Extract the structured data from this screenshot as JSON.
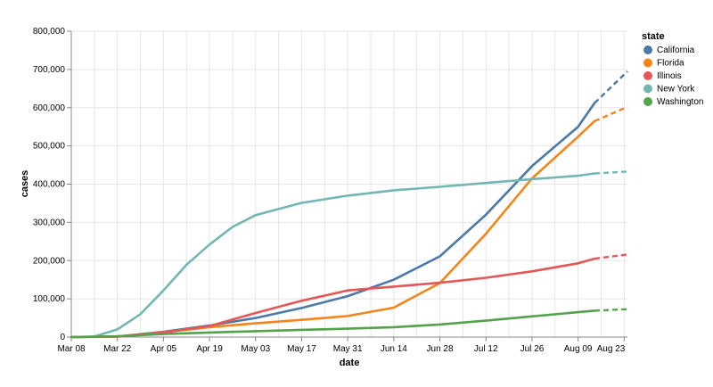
{
  "chart_data": {
    "type": "line",
    "xlabel": "date",
    "ylabel": "cases",
    "x_ticks": [
      "Mar 08",
      "Mar 22",
      "Apr 05",
      "Apr 19",
      "May 03",
      "May 17",
      "May 31",
      "Jun 14",
      "Jun 28",
      "Jul 12",
      "Jul 26",
      "Aug 09",
      "Aug 23"
    ],
    "y_ticks": [
      "0",
      "100,000",
      "200,000",
      "300,000",
      "400,000",
      "500,000",
      "600,000",
      "700,000",
      "800,000"
    ],
    "xlim": [
      "2020-03-08",
      "2020-08-24"
    ],
    "ylim": [
      0,
      800000
    ],
    "grid": true,
    "legend": {
      "title": "state",
      "position": "right"
    },
    "forecast_after": "2020-08-14",
    "series": [
      {
        "name": "California",
        "color": "#4c78a8",
        "points": [
          [
            "2020-03-08",
            100
          ],
          [
            "2020-03-22",
            1500
          ],
          [
            "2020-04-05",
            14000
          ],
          [
            "2020-04-19",
            30000
          ],
          [
            "2020-05-03",
            50000
          ],
          [
            "2020-05-17",
            76000
          ],
          [
            "2020-05-31",
            107000
          ],
          [
            "2020-06-14",
            150000
          ],
          [
            "2020-06-28",
            211000
          ],
          [
            "2020-07-12",
            320000
          ],
          [
            "2020-07-26",
            447000
          ],
          [
            "2020-08-09",
            550000
          ],
          [
            "2020-08-14",
            612000
          ],
          [
            "2020-08-24",
            695000
          ]
        ]
      },
      {
        "name": "Florida",
        "color": "#f58518",
        "points": [
          [
            "2020-03-08",
            20
          ],
          [
            "2020-03-22",
            1200
          ],
          [
            "2020-04-05",
            12500
          ],
          [
            "2020-04-19",
            26000
          ],
          [
            "2020-05-03",
            36000
          ],
          [
            "2020-05-17",
            45000
          ],
          [
            "2020-05-31",
            55000
          ],
          [
            "2020-06-14",
            77000
          ],
          [
            "2020-06-28",
            141000
          ],
          [
            "2020-07-12",
            270000
          ],
          [
            "2020-07-26",
            415000
          ],
          [
            "2020-08-09",
            524000
          ],
          [
            "2020-08-14",
            565000
          ],
          [
            "2020-08-24",
            602000
          ]
        ]
      },
      {
        "name": "Illinois",
        "color": "#e45756",
        "points": [
          [
            "2020-03-08",
            10
          ],
          [
            "2020-03-22",
            1300
          ],
          [
            "2020-04-05",
            12000
          ],
          [
            "2020-04-19",
            29000
          ],
          [
            "2020-05-03",
            63000
          ],
          [
            "2020-05-17",
            95000
          ],
          [
            "2020-05-31",
            122000
          ],
          [
            "2020-06-14",
            132000
          ],
          [
            "2020-06-28",
            142000
          ],
          [
            "2020-07-12",
            155000
          ],
          [
            "2020-07-26",
            172000
          ],
          [
            "2020-08-09",
            193000
          ],
          [
            "2020-08-14",
            205000
          ],
          [
            "2020-08-24",
            216000
          ]
        ]
      },
      {
        "name": "New York",
        "color": "#72b7b2",
        "points": [
          [
            "2020-03-08",
            100
          ],
          [
            "2020-03-15",
            1500
          ],
          [
            "2020-03-22",
            20000
          ],
          [
            "2020-03-29",
            60000
          ],
          [
            "2020-04-05",
            122000
          ],
          [
            "2020-04-12",
            189000
          ],
          [
            "2020-04-19",
            242000
          ],
          [
            "2020-04-26",
            288000
          ],
          [
            "2020-05-03",
            319000
          ],
          [
            "2020-05-17",
            351000
          ],
          [
            "2020-05-31",
            370000
          ],
          [
            "2020-06-14",
            384000
          ],
          [
            "2020-06-28",
            393000
          ],
          [
            "2020-07-12",
            403000
          ],
          [
            "2020-07-26",
            413000
          ],
          [
            "2020-08-09",
            422000
          ],
          [
            "2020-08-14",
            428000
          ],
          [
            "2020-08-24",
            433000
          ]
        ]
      },
      {
        "name": "Washington",
        "color": "#54a24b",
        "points": [
          [
            "2020-03-08",
            100
          ],
          [
            "2020-03-22",
            2000
          ],
          [
            "2020-04-05",
            8000
          ],
          [
            "2020-04-19",
            12000
          ],
          [
            "2020-05-03",
            15500
          ],
          [
            "2020-05-17",
            19000
          ],
          [
            "2020-05-31",
            22000
          ],
          [
            "2020-06-14",
            26000
          ],
          [
            "2020-06-28",
            33000
          ],
          [
            "2020-07-12",
            43000
          ],
          [
            "2020-07-26",
            54000
          ],
          [
            "2020-08-09",
            65000
          ],
          [
            "2020-08-14",
            69000
          ],
          [
            "2020-08-24",
            73000
          ]
        ]
      }
    ]
  }
}
